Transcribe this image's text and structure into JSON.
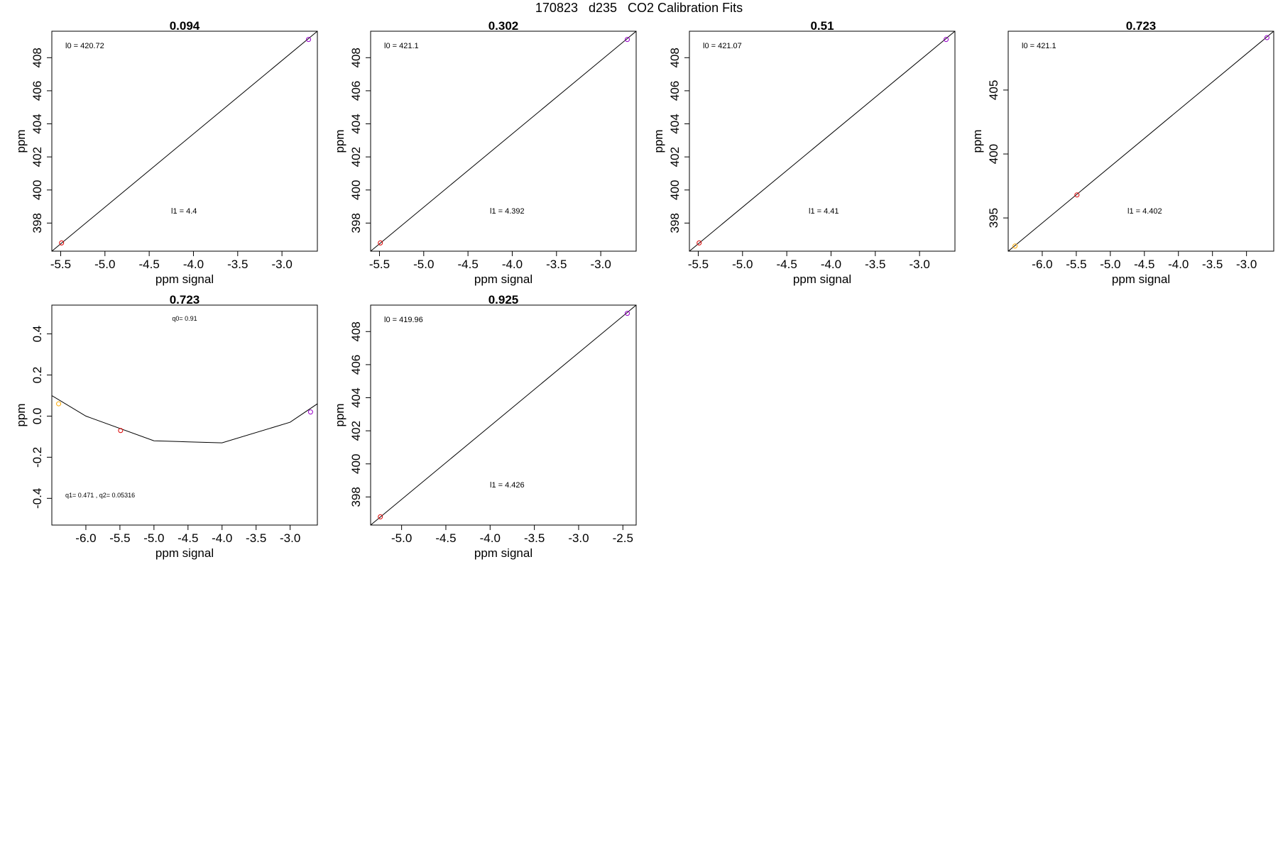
{
  "figure": {
    "title": "170823   d235   CO2 Calibration Fits"
  },
  "chart_data": [
    {
      "type": "scatter",
      "title": "0.094",
      "xlabel": "ppm signal",
      "ylabel": "ppm",
      "xlim": [
        -5.6,
        -2.6
      ],
      "ylim": [
        396.3,
        409.6
      ],
      "xticks": [
        "-5.5",
        "-5.0",
        "-4.5",
        "-4.0",
        "-3.5",
        "-3.0"
      ],
      "yticks": [
        "398",
        "400",
        "402",
        "404",
        "406",
        "408"
      ],
      "points": [
        {
          "x": -5.49,
          "y": 396.8,
          "color": "#dd0000"
        },
        {
          "x": -2.7,
          "y": 409.1,
          "color": "#9900cc"
        }
      ],
      "fit_line": [
        {
          "x": -5.6,
          "y": 396.3
        },
        {
          "x": -2.6,
          "y": 409.6
        }
      ],
      "annotations": [
        {
          "text": "l0 =  420.72",
          "pos": "top-left"
        },
        {
          "text": "l1 =  4.4",
          "pos": "middle-lower"
        }
      ]
    },
    {
      "type": "scatter",
      "title": "0.302",
      "xlabel": "ppm signal",
      "ylabel": "ppm",
      "xlim": [
        -5.6,
        -2.6
      ],
      "ylim": [
        396.3,
        409.6
      ],
      "xticks": [
        "-5.5",
        "-5.0",
        "-4.5",
        "-4.0",
        "-3.5",
        "-3.0"
      ],
      "yticks": [
        "398",
        "400",
        "402",
        "404",
        "406",
        "408"
      ],
      "points": [
        {
          "x": -5.49,
          "y": 396.8,
          "color": "#dd0000"
        },
        {
          "x": -2.7,
          "y": 409.1,
          "color": "#9900cc"
        }
      ],
      "fit_line": [
        {
          "x": -5.6,
          "y": 396.3
        },
        {
          "x": -2.6,
          "y": 409.6
        }
      ],
      "annotations": [
        {
          "text": "l0 =  421.1",
          "pos": "top-left"
        },
        {
          "text": "l1 =  4.392",
          "pos": "middle-lower"
        }
      ]
    },
    {
      "type": "scatter",
      "title": "0.51",
      "xlabel": "ppm signal",
      "ylabel": "ppm",
      "xlim": [
        -5.6,
        -2.6
      ],
      "ylim": [
        396.3,
        409.6
      ],
      "xticks": [
        "-5.5",
        "-5.0",
        "-4.5",
        "-4.0",
        "-3.5",
        "-3.0"
      ],
      "yticks": [
        "398",
        "400",
        "402",
        "404",
        "406",
        "408"
      ],
      "points": [
        {
          "x": -5.49,
          "y": 396.8,
          "color": "#dd0000"
        },
        {
          "x": -2.7,
          "y": 409.1,
          "color": "#9900cc"
        }
      ],
      "fit_line": [
        {
          "x": -5.6,
          "y": 396.3
        },
        {
          "x": -2.6,
          "y": 409.6
        }
      ],
      "annotations": [
        {
          "text": "l0 =  421.07",
          "pos": "top-left"
        },
        {
          "text": "l1 =  4.41",
          "pos": "middle-lower"
        }
      ]
    },
    {
      "type": "scatter",
      "title": "0.723",
      "xlabel": "ppm signal",
      "ylabel": "ppm",
      "xlim": [
        -6.5,
        -2.6
      ],
      "ylim": [
        392.4,
        409.6
      ],
      "xticks": [
        "-6.0",
        "-5.5",
        "-5.0",
        "-4.5",
        "-4.0",
        "-3.5",
        "-3.0"
      ],
      "yticks": [
        "395",
        "400",
        "405"
      ],
      "points": [
        {
          "x": -6.4,
          "y": 392.8,
          "color": "#ffaa00"
        },
        {
          "x": -5.49,
          "y": 396.8,
          "color": "#dd0000"
        },
        {
          "x": -2.7,
          "y": 409.1,
          "color": "#9900cc"
        }
      ],
      "fit_line": [
        {
          "x": -6.5,
          "y": 392.4
        },
        {
          "x": -2.6,
          "y": 409.6
        }
      ],
      "annotations": [
        {
          "text": "l0 =  421.1",
          "pos": "top-left"
        },
        {
          "text": "l1 =  4.402",
          "pos": "middle-lower"
        }
      ]
    },
    {
      "type": "line",
      "title": "0.723",
      "xlabel": "ppm signal",
      "ylabel": "ppm",
      "xlim": [
        -6.5,
        -2.6
      ],
      "ylim": [
        -0.53,
        0.54
      ],
      "xticks": [
        "-6.0",
        "-5.5",
        "-5.0",
        "-4.5",
        "-4.0",
        "-3.5",
        "-3.0"
      ],
      "yticks": [
        "-0.4",
        "-0.2",
        "0.0",
        "0.2",
        "0.4"
      ],
      "points": [
        {
          "x": -6.4,
          "y": 0.06,
          "color": "#ffaa00"
        },
        {
          "x": -5.49,
          "y": -0.07,
          "color": "#dd0000"
        },
        {
          "x": -2.7,
          "y": 0.02,
          "color": "#9900cc"
        }
      ],
      "fit_line": [
        {
          "x": -6.5,
          "y": 0.1
        },
        {
          "x": -6.0,
          "y": 0.0
        },
        {
          "x": -5.0,
          "y": -0.12
        },
        {
          "x": -4.5,
          "y": -0.125
        },
        {
          "x": -4.0,
          "y": -0.13
        },
        {
          "x": -3.0,
          "y": -0.03
        },
        {
          "x": -2.6,
          "y": 0.06
        }
      ],
      "annotations": [
        {
          "text": "q0= 0.91",
          "pos": "top-center"
        },
        {
          "text": "q1= 0.471 , q2= 0.05316",
          "pos": "bottom-left"
        }
      ]
    },
    {
      "type": "scatter",
      "title": "0.925",
      "xlabel": "ppm signal",
      "ylabel": "ppm",
      "xlim": [
        -5.35,
        -2.35
      ],
      "ylim": [
        396.3,
        409.6
      ],
      "xticks": [
        "-5.0",
        "-4.5",
        "-4.0",
        "-3.5",
        "-3.0",
        "-2.5"
      ],
      "yticks": [
        "398",
        "400",
        "402",
        "404",
        "406",
        "408"
      ],
      "points": [
        {
          "x": -5.24,
          "y": 396.8,
          "color": "#dd0000"
        },
        {
          "x": -2.45,
          "y": 409.1,
          "color": "#9900cc"
        }
      ],
      "fit_line": [
        {
          "x": -5.35,
          "y": 396.3
        },
        {
          "x": -2.35,
          "y": 409.6
        }
      ],
      "annotations": [
        {
          "text": "l0 =  419.96",
          "pos": "top-left"
        },
        {
          "text": "l1 =  4.426",
          "pos": "middle-lower"
        }
      ]
    }
  ]
}
